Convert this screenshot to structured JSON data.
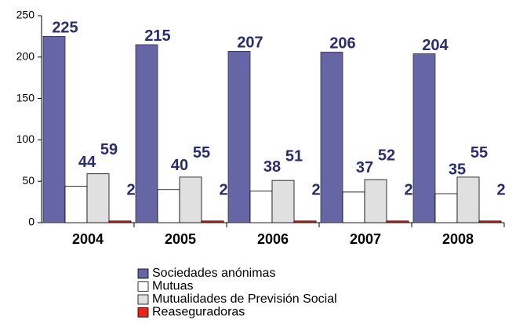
{
  "chart_data": {
    "type": "bar",
    "categories": [
      "2004",
      "2005",
      "2006",
      "2007",
      "2008"
    ],
    "series": [
      {
        "name": "Sociedades anónimas",
        "color": "#6666a6",
        "values": [
          225,
          215,
          207,
          206,
          204
        ]
      },
      {
        "name": "Mutuas",
        "color": "#ffffff",
        "values": [
          44,
          40,
          38,
          37,
          35
        ]
      },
      {
        "name": "Mutualidades de Previsión Social",
        "color": "#e0e0e0",
        "values": [
          59,
          55,
          51,
          52,
          55
        ]
      },
      {
        "name": "Reaseguradoras",
        "color": "#e8241c",
        "values": [
          2,
          2,
          2,
          2,
          2
        ]
      }
    ],
    "ylim": [
      0,
      250
    ],
    "yticks": [
      0,
      50,
      100,
      150,
      200,
      250
    ],
    "grid": false,
    "legend": "bottom"
  }
}
